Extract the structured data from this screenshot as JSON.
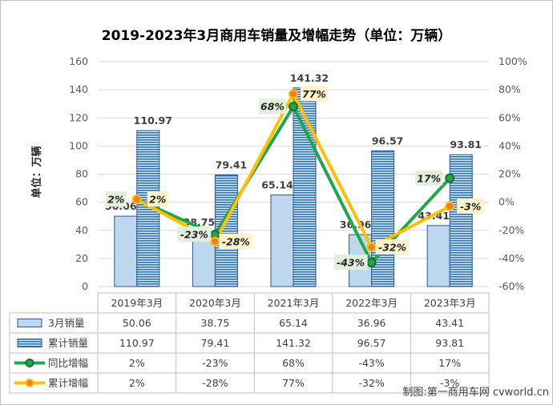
{
  "chart_data": {
    "type": "bar+line",
    "title": "2019-2023年3月商用车销量及增幅走势（单位：万辆）",
    "ylabel": "单位：万辆",
    "ylim": [
      0,
      160
    ],
    "y2lim": [
      -60,
      100
    ],
    "y_ticks": [
      "0",
      "20",
      "40",
      "60",
      "80",
      "100",
      "120",
      "140",
      "160"
    ],
    "y2_ticks": [
      "-60%",
      "-40%",
      "-20%",
      "0%",
      "20%",
      "40%",
      "60%",
      "80%",
      "100%"
    ],
    "categories": [
      "2019年3月",
      "2020年3月",
      "2021年3月",
      "2022年3月",
      "2023年3月"
    ],
    "series": [
      {
        "name": "3月销量",
        "kind": "bar",
        "axis": "left",
        "color": "#bdd7ee",
        "values": [
          50.06,
          38.75,
          65.14,
          36.96,
          43.41
        ],
        "labels": [
          "50.06",
          "38.75",
          "65.14",
          "36.96",
          "43.41"
        ]
      },
      {
        "name": "累计销量",
        "kind": "bar",
        "axis": "left",
        "color": "#2e75b6",
        "values": [
          110.97,
          79.41,
          141.32,
          96.57,
          93.81
        ],
        "labels": [
          "110.97",
          "79.41",
          "141.32",
          "96.57",
          "93.81"
        ]
      },
      {
        "name": "同比增幅",
        "kind": "line",
        "axis": "right",
        "color": "#1fa84a",
        "values": [
          2,
          -23,
          68,
          -43,
          17
        ],
        "labels": [
          "2%",
          "-23%",
          "68%",
          "-43%",
          "17%"
        ]
      },
      {
        "name": "累计增幅",
        "kind": "line",
        "axis": "right",
        "color": "#ffc000",
        "values": [
          2,
          -28,
          77,
          -32,
          -3
        ],
        "labels": [
          "2%",
          "-28%",
          "77%",
          "-32%",
          "-3%"
        ]
      }
    ],
    "gridlines": true,
    "data_table": true
  },
  "source": "制图:第一商用车网 cvworld.cn"
}
